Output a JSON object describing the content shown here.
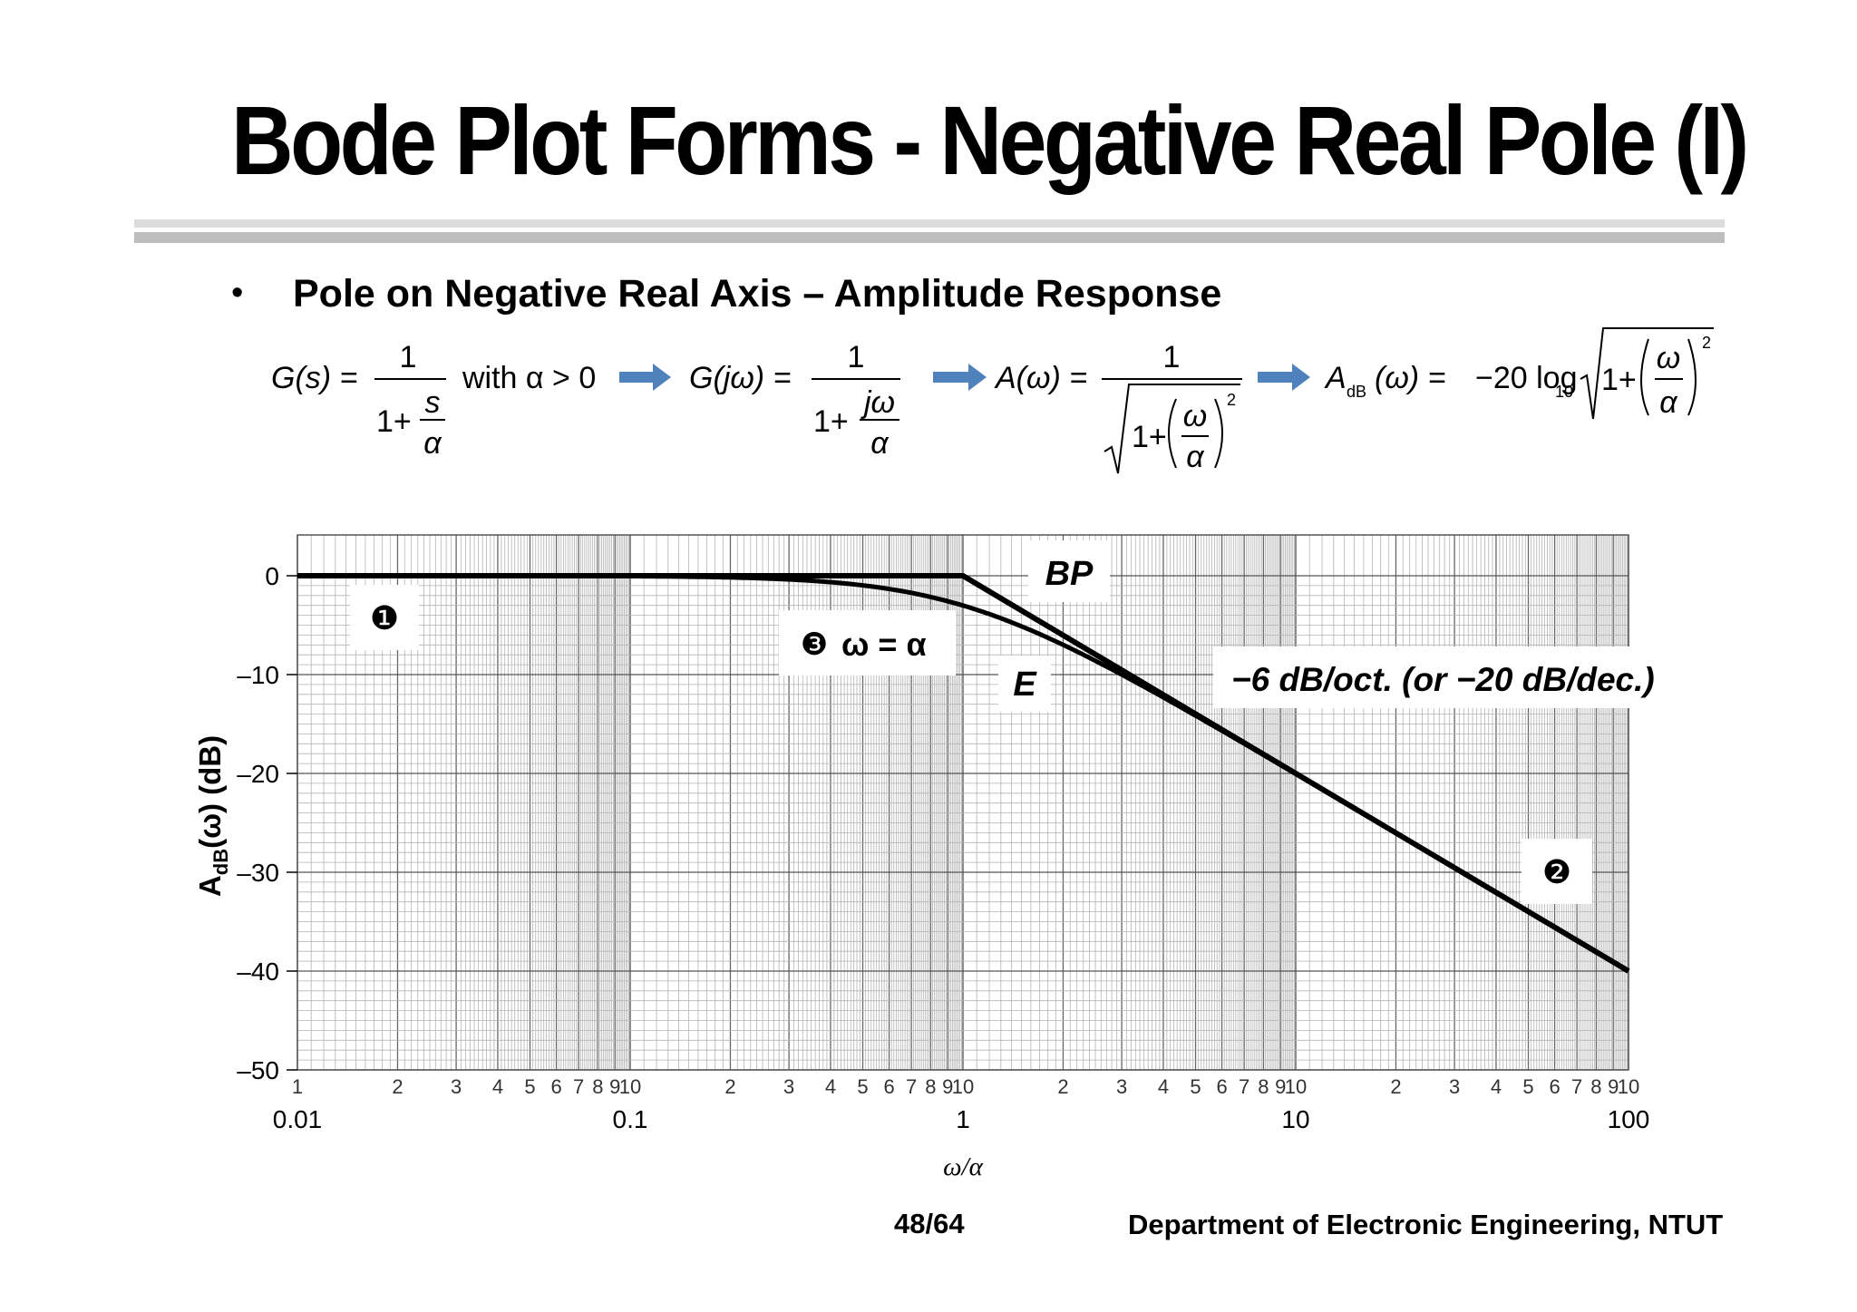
{
  "slide": {
    "title": "Bode Plot Forms - Negative Real Pole (I)",
    "bullet": "Pole on Negative Real Axis – Amplitude Response",
    "page": "48/64",
    "department": "Department of Electronic Engineering, NTUT",
    "accent_color": "#4F81BD"
  },
  "equations": {
    "eq1": {
      "lhs": "G(s) =",
      "num": "1",
      "den_prefix": "1+",
      "den_frac_num": "s",
      "den_frac_den": "α",
      "condition": "with α > 0"
    },
    "eq2": {
      "lhs": "G(jω) =",
      "num": "1",
      "den_prefix": "1+",
      "den_frac_num": "jω",
      "den_frac_den": "α"
    },
    "eq3": {
      "lhs": "A(ω) =",
      "num": "1",
      "rad_prefix": "1+",
      "rad_frac_num": "ω",
      "rad_frac_den": "α",
      "exp": "2"
    },
    "eq4": {
      "lhs": "A",
      "lhs_sub": "dB",
      "lhs_arg": "(ω) =",
      "coef": "−20 log",
      "coef_sub": "10",
      "rad_prefix": "1+",
      "rad_frac_num": "ω",
      "rad_frac_den": "α",
      "exp": "2"
    }
  },
  "chart_data": {
    "type": "line",
    "x_scale": "log",
    "xlim": [
      0.01,
      100
    ],
    "ylim": [
      -50,
      0
    ],
    "grid": true,
    "xlabel": "ω/α",
    "ylabel_main": "A",
    "ylabel_sub": "dB",
    "ylabel_rest": "(ω)  (dB)",
    "y_ticks": [
      {
        "value": 0,
        "label": "0"
      },
      {
        "value": -10,
        "label": "–10"
      },
      {
        "value": -20,
        "label": "–20"
      },
      {
        "value": -30,
        "label": "–30"
      },
      {
        "value": -40,
        "label": "–40"
      },
      {
        "value": -50,
        "label": "–50"
      }
    ],
    "x_decade_labels": [
      {
        "value": 0.01,
        "label": "0.01"
      },
      {
        "value": 0.1,
        "label": "0.1"
      },
      {
        "value": 1,
        "label": "1"
      },
      {
        "value": 10,
        "label": "10"
      },
      {
        "value": 100,
        "label": "100"
      }
    ],
    "x_minor_labels": [
      "1",
      "2",
      "3",
      "4",
      "5",
      "6",
      "7",
      "8",
      "9",
      "10"
    ],
    "series": [
      {
        "kind": "asymptote",
        "x": [
          0.01,
          1,
          100
        ],
        "y": [
          0,
          0,
          -40
        ]
      },
      {
        "kind": "exact",
        "formula": "-10*log10(1+x^2)",
        "x_start": 0.01,
        "x_end": 100
      }
    ],
    "annotations": {
      "bp": "BP",
      "e": "E",
      "marker1": "❶",
      "marker2": "❷",
      "marker3": "❸",
      "marker3_text": "ω = α",
      "slope_label": "−6 dB/oct. (or −20 dB/dec.)"
    }
  }
}
